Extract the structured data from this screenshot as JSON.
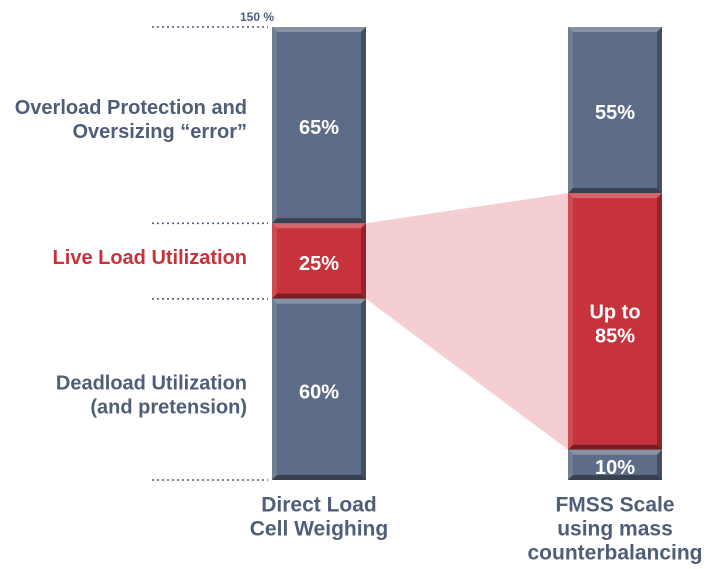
{
  "chart_data": {
    "type": "bar",
    "stacked": true,
    "orientation": "vertical",
    "scale_label": "150 %",
    "scale_total": 150,
    "colors": {
      "bar_blue": "#5e6d87",
      "bar_red": "#c7323c",
      "text_blue": "#4f5e78",
      "text_red": "#c7323c",
      "highlight_fill": "#f2c6cb"
    },
    "row_labels": [
      {
        "lines": [
          "Overload Protection and",
          "Oversizing “error”"
        ],
        "color": "blue"
      },
      {
        "lines": [
          "Live Load Utilization"
        ],
        "color": "red"
      },
      {
        "lines": [
          "Deadload Utilization",
          "(and pretension)"
        ],
        "color": "blue"
      }
    ],
    "series": [
      {
        "name_lines": [
          "Direct Load",
          "Cell Weighing"
        ],
        "segments": [
          {
            "label_lines": [
              "65%"
            ],
            "value": 65,
            "color": "blue"
          },
          {
            "label_lines": [
              "25%"
            ],
            "value": 25,
            "color": "red"
          },
          {
            "label_lines": [
              "60%"
            ],
            "value": 60,
            "color": "blue"
          }
        ]
      },
      {
        "name_lines": [
          "FMSS Scale",
          "using mass",
          "counterbalancing"
        ],
        "segments": [
          {
            "label_lines": [
              "55%"
            ],
            "value": 55,
            "color": "blue"
          },
          {
            "label_lines": [
              "Up to",
              "85%"
            ],
            "value": 85,
            "color": "red"
          },
          {
            "label_lines": [
              "10%"
            ],
            "value": 10,
            "color": "blue"
          }
        ]
      }
    ]
  }
}
